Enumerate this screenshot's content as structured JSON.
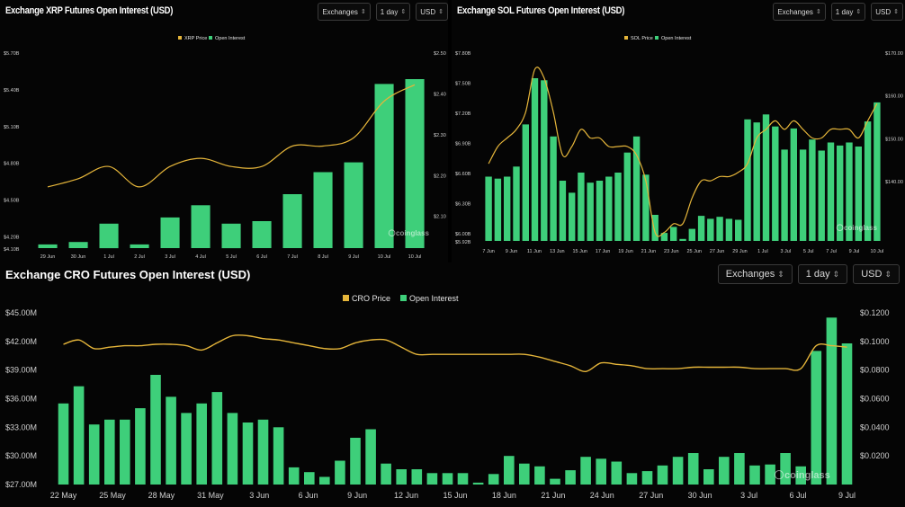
{
  "panels": [
    {
      "id": "xrp",
      "title": "Exchange XRP Futures Open Interest (USD)",
      "controls": {
        "exchanges": "Exchanges",
        "interval": "1 day",
        "currency": "USD"
      }
    },
    {
      "id": "sol",
      "title": "Exchange SOL Futures Open Interest (USD)",
      "controls": {
        "exchanges": "Exchanges",
        "interval": "1 day",
        "currency": "USD"
      }
    },
    {
      "id": "cro",
      "title": "Exchange CRO Futures Open Interest (USD)",
      "controls": {
        "exchanges": "Exchanges",
        "interval": "1 day",
        "currency": "USD"
      }
    }
  ],
  "colors": {
    "bar": "#3ecf7a",
    "line": "#e5b53a",
    "text": "#cfcfcf",
    "background": "#050505"
  },
  "watermark": "coinglass",
  "chart_data": [
    {
      "type": "bar",
      "title": "Exchange XRP Futures Open Interest (USD)",
      "legend": [
        "XRP Price",
        "Open Interest"
      ],
      "legend_position": "top-center",
      "grid": false,
      "y_left": {
        "ticks": [
          "$4.10B",
          "$4.20B",
          "$4.50B",
          "$4.80B",
          "$5.10B",
          "$5.40B",
          "$5.70B"
        ],
        "tick_values": [
          4.1,
          4.2,
          4.5,
          4.8,
          5.1,
          5.4,
          5.7
        ],
        "range": [
          4.1,
          5.7
        ]
      },
      "y_right": {
        "ticks": [
          "$2.10",
          "$2.20",
          "$2.30",
          "$2.40",
          "$2.50"
        ],
        "tick_values": [
          2.1,
          2.2,
          2.3,
          2.4,
          2.5
        ],
        "range": [
          2.02,
          2.5
        ]
      },
      "x_ticks": [
        "29 Jun",
        "30 Jun",
        "1 Jul",
        "2 Jul",
        "3 Jul",
        "4 Jul",
        "5 Jul",
        "6 Jul",
        "7 Jul",
        "8 Jul",
        "9 Jul",
        "10 Jul",
        "10 Jul"
      ],
      "series": [
        {
          "name": "Open Interest",
          "type": "bar",
          "values": [
            4.13,
            4.15,
            4.3,
            4.13,
            4.35,
            4.45,
            4.3,
            4.32,
            4.54,
            4.72,
            4.8,
            5.44,
            5.48
          ]
        },
        {
          "name": "XRP Price",
          "type": "line",
          "values": [
            2.17,
            2.19,
            2.22,
            2.17,
            2.22,
            2.24,
            2.22,
            2.22,
            2.27,
            2.27,
            2.29,
            2.38,
            2.42
          ]
        }
      ]
    },
    {
      "type": "bar",
      "title": "Exchange SOL Futures Open Interest (USD)",
      "legend": [
        "SOL Price",
        "Open Interest"
      ],
      "legend_position": "top-center",
      "grid": false,
      "y_left": {
        "ticks": [
          "$5.92B",
          "$6.00B",
          "$6.30B",
          "$6.60B",
          "$6.90B",
          "$7.20B",
          "$7.50B",
          "$7.80B"
        ],
        "tick_values": [
          5.92,
          6.0,
          6.3,
          6.6,
          6.9,
          7.2,
          7.5,
          7.8
        ],
        "range": [
          5.92,
          7.8
        ]
      },
      "y_right": {
        "ticks": [
          "$140.00",
          "$150.00",
          "$160.00",
          "$170.00"
        ],
        "tick_values": [
          140,
          150,
          160,
          170
        ],
        "range": [
          126,
          170
        ]
      },
      "x_ticks": [
        "7 Jun",
        "9 Jun",
        "11 Jun",
        "13 Jun",
        "15 Jun",
        "17 Jun",
        "19 Jun",
        "21 Jun",
        "23 Jun",
        "25 Jun",
        "27 Jun",
        "29 Jun",
        "1 Jul",
        "3 Jul",
        "5 Jul",
        "7 Jul",
        "9 Jul",
        "10 Jul"
      ],
      "series": [
        {
          "name": "Open Interest",
          "type": "bar",
          "values": [
            6.56,
            6.54,
            6.56,
            6.66,
            7.08,
            7.54,
            7.52,
            6.96,
            6.52,
            6.4,
            6.6,
            6.5,
            6.52,
            6.56,
            6.6,
            6.8,
            6.96,
            6.58,
            6.18,
            6.0,
            6.06,
            5.94,
            6.04,
            6.17,
            6.14,
            6.16,
            6.14,
            6.13,
            7.13,
            7.1,
            7.18,
            7.06,
            6.83,
            7.04,
            6.83,
            6.93,
            6.82,
            6.9,
            6.87,
            6.9,
            6.86,
            7.11,
            7.3
          ]
        },
        {
          "name": "SOL Price",
          "type": "line",
          "values": [
            144,
            148,
            150,
            152,
            156,
            166,
            164,
            156,
            146,
            148,
            152,
            150,
            150,
            148,
            148,
            148,
            146,
            140,
            128,
            128,
            130,
            130,
            136,
            140,
            140,
            141,
            141,
            142,
            144,
            150,
            152,
            154,
            152,
            154,
            152,
            150,
            150,
            152,
            152,
            152,
            150,
            154,
            158
          ]
        }
      ]
    },
    {
      "type": "bar",
      "title": "Exchange CRO Futures Open Interest (USD)",
      "legend": [
        "CRO Price",
        "Open Interest"
      ],
      "legend_position": "top-center",
      "grid": false,
      "y_left": {
        "ticks": [
          "$27.00M",
          "$30.00M",
          "$33.00M",
          "$36.00M",
          "$39.00M",
          "$42.00M",
          "$45.00M"
        ],
        "tick_values": [
          27,
          30,
          33,
          36,
          39,
          42,
          45
        ],
        "range": [
          27,
          45
        ]
      },
      "y_right": {
        "ticks": [
          "$0.0200",
          "$0.0400",
          "$0.0600",
          "$0.0800",
          "$0.1000",
          "$0.1200"
        ],
        "tick_values": [
          0.02,
          0.04,
          0.06,
          0.08,
          0.1,
          0.12
        ],
        "range": [
          0.0,
          0.12
        ]
      },
      "x_ticks": [
        "22 May",
        "25 May",
        "28 May",
        "31 May",
        "3 Jun",
        "6 Jun",
        "9 Jun",
        "12 Jun",
        "15 Jun",
        "18 Jun",
        "21 Jun",
        "24 Jun",
        "27 Jun",
        "30 Jun",
        "3 Jul",
        "6 Jul",
        "9 Jul"
      ],
      "series": [
        {
          "name": "Open Interest",
          "type": "bar",
          "values": [
            35.5,
            37.3,
            33.3,
            33.8,
            33.8,
            35.0,
            38.5,
            36.2,
            34.5,
            35.5,
            36.7,
            34.5,
            33.5,
            33.8,
            33.0,
            28.8,
            28.3,
            27.8,
            29.5,
            31.9,
            32.8,
            29.2,
            28.6,
            28.6,
            28.2,
            28.2,
            28.2,
            27.2,
            28.1,
            30.0,
            29.2,
            28.9,
            27.6,
            28.5,
            29.9,
            29.7,
            29.4,
            28.2,
            28.4,
            29.0,
            29.9,
            30.3,
            28.6,
            29.9,
            30.3,
            29.0,
            29.1,
            30.3,
            28.9,
            41.0,
            44.5,
            41.8
          ]
        },
        {
          "name": "CRO Price",
          "type": "line",
          "values": [
            0.098,
            0.101,
            0.095,
            0.096,
            0.097,
            0.097,
            0.098,
            0.098,
            0.097,
            0.094,
            0.099,
            0.104,
            0.104,
            0.102,
            0.101,
            0.099,
            0.097,
            0.095,
            0.095,
            0.099,
            0.101,
            0.101,
            0.096,
            0.091,
            0.091,
            0.091,
            0.091,
            0.091,
            0.091,
            0.091,
            0.091,
            0.089,
            0.086,
            0.083,
            0.079,
            0.085,
            0.084,
            0.083,
            0.081,
            0.081,
            0.081,
            0.082,
            0.082,
            0.082,
            0.082,
            0.081,
            0.081,
            0.081,
            0.081,
            0.097,
            0.097,
            0.096
          ]
        }
      ]
    }
  ]
}
